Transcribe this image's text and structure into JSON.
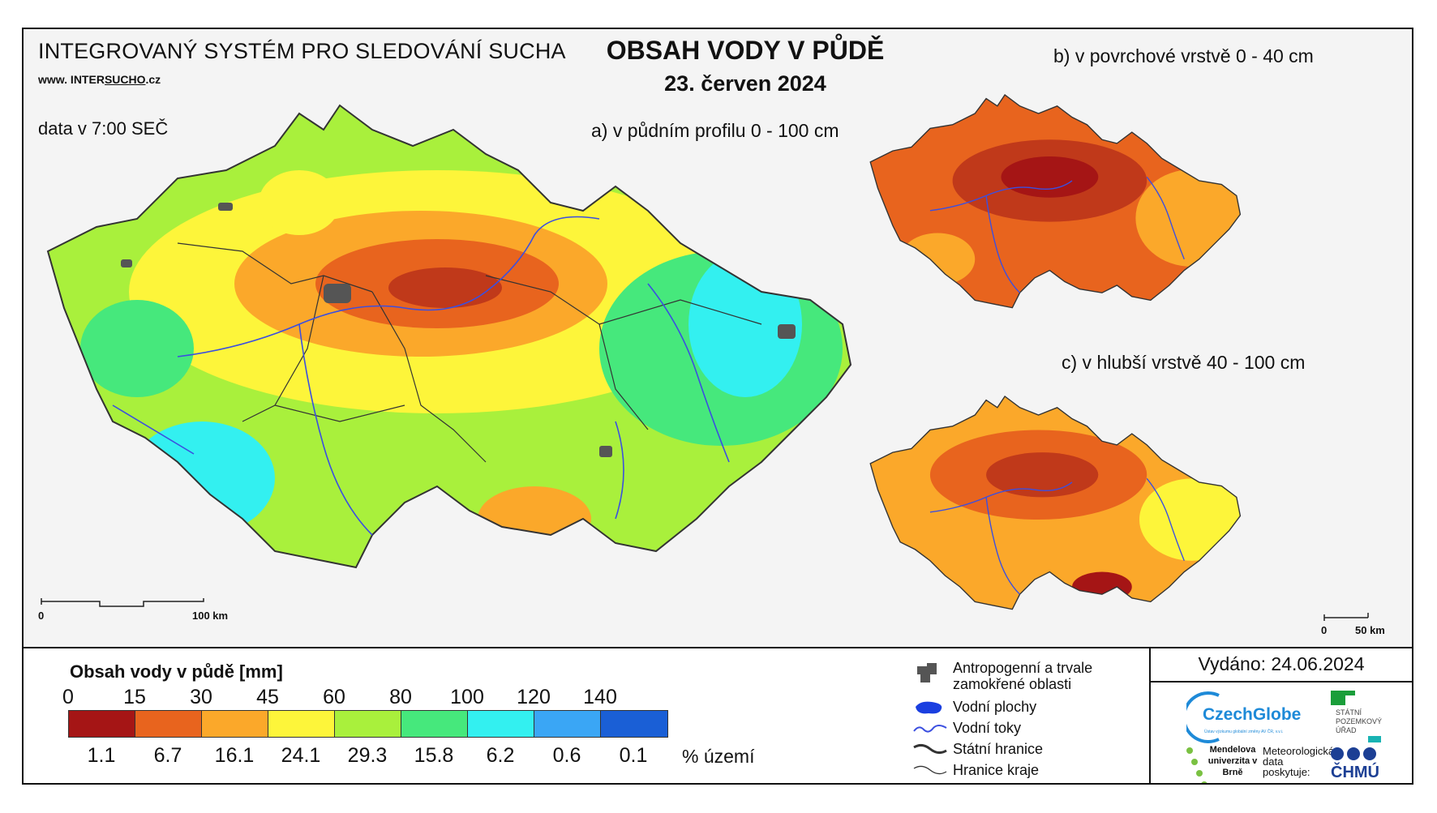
{
  "header": {
    "system_name": "INTEGROVANÝ SYSTÉM PRO SLEDOVÁNÍ SUCHA",
    "website_prefix": "www. INTER",
    "website_underlined": "SUCHO",
    "website_suffix": ".cz",
    "data_time": "data v 7:00 SEČ",
    "title": "OBSAH VODY V PŮDĚ",
    "date": "23. červen 2024"
  },
  "maps": {
    "a": {
      "label": "a) v půdním profilu 0 - 100 cm"
    },
    "b": {
      "label": "b) v povrchové vrstvě 0 - 40 cm"
    },
    "c": {
      "label": "c) v hlubší vrstvě 40 - 100 cm"
    }
  },
  "scale_bars": {
    "main": {
      "start": "0",
      "end": "100 km"
    },
    "small": {
      "start": "0",
      "end": "50 km"
    }
  },
  "legend": {
    "title": "Obsah vody v půdě  [mm]",
    "breaks": [
      "0",
      "15",
      "30",
      "45",
      "60",
      "80",
      "100",
      "120",
      "140"
    ],
    "colors": [
      "#a51515",
      "#e8641e",
      "#fba82a",
      "#fdf53a",
      "#a9f03c",
      "#46e87c",
      "#33f0f0",
      "#3aa6f5",
      "#1a5fd6"
    ],
    "percent_values": [
      "1.1",
      "6.7",
      "16.1",
      "24.1",
      "29.3",
      "15.8",
      "6.2",
      "0.6",
      "0.1"
    ],
    "percent_unit": "% území",
    "items": [
      {
        "label": "Antropogenní a trvale zamokřené oblasti",
        "icon": "urban-area-icon"
      },
      {
        "label": "Vodní plochy",
        "icon": "water-body-icon"
      },
      {
        "label": "Vodní toky",
        "icon": "river-icon"
      },
      {
        "label": "Státní hranice",
        "icon": "state-border-icon"
      },
      {
        "label": "Hranice kraje",
        "icon": "region-border-icon"
      }
    ]
  },
  "footer": {
    "issued": "Vydáno: 24.06.2024",
    "logos": {
      "czechglobe": "CzechGlobe",
      "czechglobe_tagline": "Ústav výzkumu globální změny AV ČR, v.v.i.",
      "spu": "STÁTNÍ POZEMKOVÝ ÚŘAD",
      "mendelu": "Mendelova univerzita v Brně",
      "chmu_note": "Meteorologická data poskytuje:",
      "chmu": "ČHMÚ"
    }
  }
}
